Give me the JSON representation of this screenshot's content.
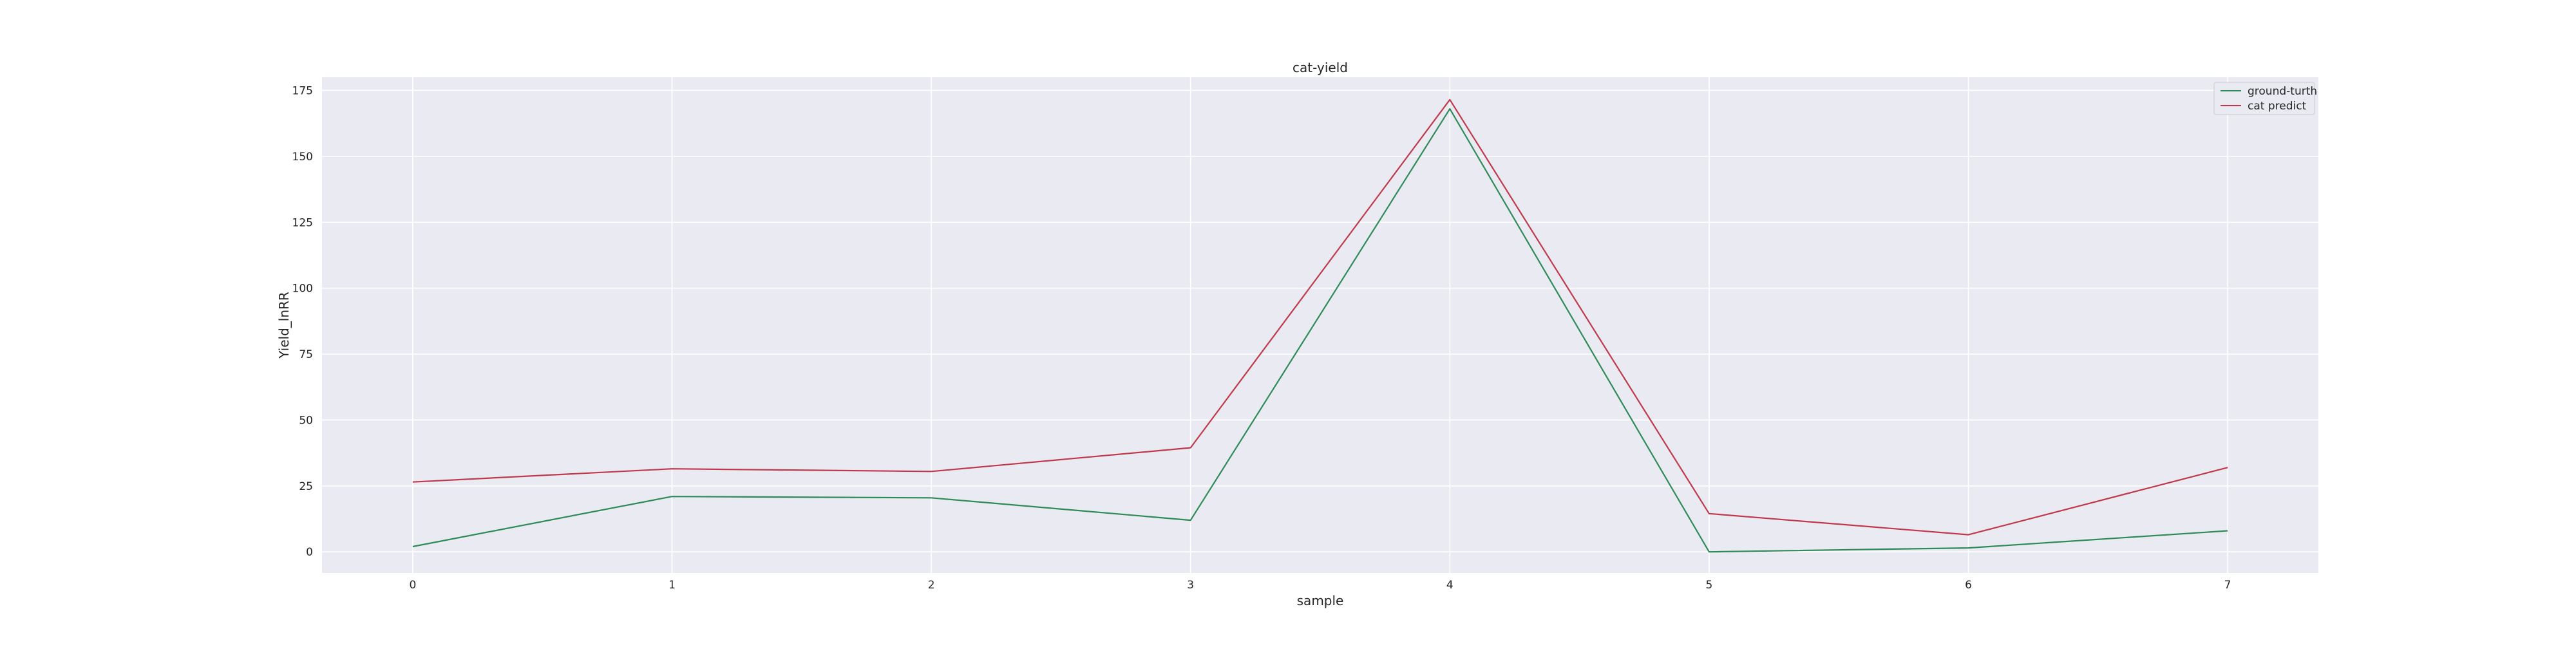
{
  "chart_data": {
    "type": "line",
    "title": "cat-yield",
    "xlabel": "sample",
    "ylabel": "Yield_lnRR",
    "x": [
      0,
      1,
      2,
      3,
      4,
      5,
      6,
      7
    ],
    "xlim": [
      -0.35,
      7.35
    ],
    "ylim": [
      -8,
      180
    ],
    "yticks": [
      0,
      25,
      50,
      75,
      100,
      125,
      150,
      175
    ],
    "grid": true,
    "legend_position": "top-right",
    "series": [
      {
        "name": "ground-turth",
        "color": "#2e8b57",
        "values": [
          2,
          21,
          20.5,
          12,
          168,
          0,
          1.5,
          8
        ]
      },
      {
        "name": "cat predict",
        "color": "#c0394b",
        "values": [
          26.5,
          31.5,
          30.5,
          39.5,
          171.5,
          14.5,
          6.5,
          32
        ]
      }
    ]
  }
}
